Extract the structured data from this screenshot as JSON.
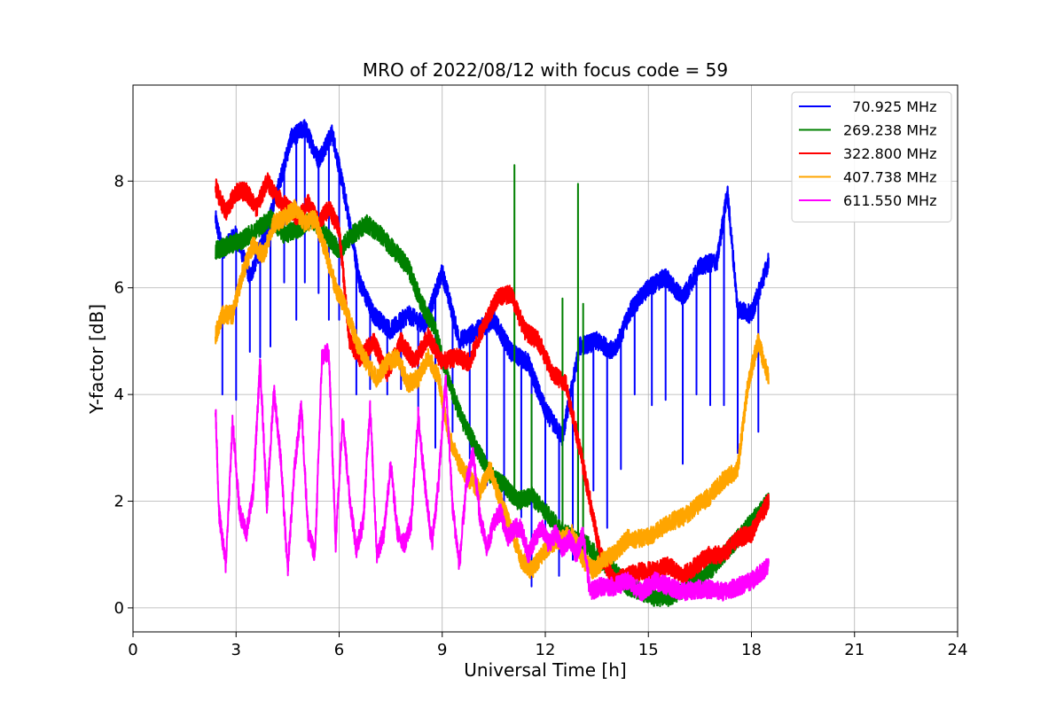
{
  "chart_data": {
    "type": "line",
    "title": "MRO of 2022/08/12 with focus code = 59",
    "xlabel": "Universal Time [h]",
    "ylabel": "Y-factor [dB]",
    "xlim": [
      0,
      24
    ],
    "ylim": [
      -0.45,
      9.8
    ],
    "xticks": [
      0,
      3,
      6,
      9,
      12,
      15,
      18,
      21,
      24
    ],
    "yticks": [
      0,
      2,
      4,
      6,
      8
    ],
    "grid": true,
    "legend_position": "upper right",
    "series": [
      {
        "name": "  70.925 MHz",
        "color": "#0000ff",
        "x": [
          2.4,
          2.6,
          3.0,
          3.4,
          3.8,
          4.2,
          4.6,
          5.0,
          5.4,
          5.8,
          6.2,
          6.6,
          7.0,
          7.5,
          8.0,
          8.5,
          9.0,
          9.5,
          10.0,
          10.5,
          11.0,
          11.5,
          12.0,
          12.5,
          13.0,
          13.5,
          14.0,
          14.5,
          15.0,
          15.5,
          16.0,
          16.5,
          17.0,
          17.3,
          17.6,
          18.0,
          18.5
        ],
        "y": [
          7.3,
          6.7,
          7.0,
          6.2,
          6.9,
          7.8,
          8.8,
          9.0,
          8.4,
          8.9,
          7.6,
          6.1,
          5.5,
          5.2,
          5.5,
          5.3,
          6.3,
          5.0,
          5.2,
          5.4,
          4.8,
          4.6,
          3.7,
          3.2,
          4.9,
          5.0,
          4.8,
          5.6,
          6.0,
          6.2,
          5.8,
          6.4,
          6.5,
          7.8,
          5.6,
          5.5,
          6.5
        ],
        "dips": [
          [
            2.6,
            4.0
          ],
          [
            3.0,
            3.9
          ],
          [
            3.4,
            4.8
          ],
          [
            3.7,
            4.7
          ],
          [
            4.0,
            4.9
          ],
          [
            4.4,
            6.1
          ],
          [
            4.75,
            5.4
          ],
          [
            5.0,
            6.1
          ],
          [
            5.4,
            5.9
          ],
          [
            5.7,
            5.4
          ],
          [
            6.0,
            5.4
          ],
          [
            6.5,
            4.0
          ],
          [
            6.9,
            4.1
          ],
          [
            7.4,
            4.0
          ],
          [
            7.8,
            4.1
          ],
          [
            8.3,
            3.7
          ],
          [
            8.8,
            3.0
          ],
          [
            9.3,
            3.3
          ],
          [
            9.8,
            2.8
          ],
          [
            10.3,
            2.3
          ],
          [
            10.8,
            1.5
          ],
          [
            11.3,
            1.7
          ],
          [
            11.6,
            0.4
          ],
          [
            12.0,
            1.0
          ],
          [
            12.4,
            0.6
          ],
          [
            12.8,
            0.9
          ],
          [
            13.4,
            2.2
          ],
          [
            13.8,
            1.5
          ],
          [
            14.2,
            2.6
          ],
          [
            14.6,
            4.0
          ],
          [
            15.1,
            3.8
          ],
          [
            15.5,
            3.9
          ],
          [
            16.0,
            2.7
          ],
          [
            16.4,
            4.0
          ],
          [
            16.8,
            3.8
          ],
          [
            17.2,
            3.8
          ],
          [
            17.6,
            2.9
          ],
          [
            18.2,
            3.3
          ]
        ]
      },
      {
        "name": "269.238 MHz",
        "color": "#008000",
        "x": [
          2.4,
          2.8,
          3.2,
          3.6,
          4.0,
          4.4,
          4.8,
          5.2,
          5.6,
          6.0,
          6.4,
          6.8,
          7.2,
          7.6,
          8.0,
          8.4,
          8.8,
          9.2,
          9.6,
          10.0,
          10.4,
          10.8,
          11.2,
          11.6,
          12.0,
          12.4,
          12.8,
          13.2,
          13.6,
          14.0,
          14.4,
          14.8,
          15.2,
          15.6,
          16.0,
          16.4,
          16.8,
          17.2,
          17.6,
          18.0,
          18.5
        ],
        "y": [
          6.7,
          6.8,
          6.9,
          7.1,
          7.3,
          7.0,
          7.1,
          7.3,
          7.0,
          6.7,
          7.0,
          7.2,
          7.0,
          6.7,
          6.4,
          5.7,
          5.2,
          4.2,
          3.5,
          3.0,
          2.5,
          2.3,
          2.0,
          2.1,
          1.8,
          1.5,
          1.3,
          1.2,
          0.9,
          0.7,
          0.4,
          0.3,
          0.2,
          0.2,
          0.35,
          0.5,
          0.7,
          1.0,
          1.3,
          1.6,
          2.0
        ],
        "spikes": [
          [
            11.1,
            8.3
          ],
          [
            12.5,
            5.8
          ],
          [
            12.95,
            7.95
          ],
          [
            13.1,
            5.7
          ],
          [
            11.6,
            4.0
          ]
        ]
      },
      {
        "name": "322.800 MHz",
        "color": "#ff0000",
        "x": [
          2.4,
          2.7,
          3.0,
          3.3,
          3.6,
          3.9,
          4.2,
          4.5,
          4.8,
          5.1,
          5.4,
          5.7,
          6.0,
          6.3,
          6.6,
          7.0,
          7.4,
          7.8,
          8.2,
          8.6,
          9.0,
          9.4,
          9.8,
          10.2,
          10.6,
          11.0,
          11.4,
          11.8,
          12.2,
          12.6,
          13.0,
          13.3,
          13.6,
          14.0,
          14.4,
          14.8,
          15.2,
          15.6,
          16.0,
          16.4,
          16.8,
          17.2,
          17.6,
          18.0,
          18.5
        ],
        "y": [
          7.9,
          7.4,
          7.8,
          7.8,
          7.5,
          8.0,
          7.7,
          7.5,
          7.3,
          7.6,
          7.2,
          7.5,
          7.1,
          5.0,
          4.7,
          5.0,
          4.4,
          5.0,
          4.6,
          5.1,
          4.6,
          4.7,
          4.6,
          5.3,
          5.8,
          5.9,
          5.2,
          5.0,
          4.4,
          4.2,
          3.0,
          2.0,
          1.0,
          0.5,
          0.6,
          0.7,
          0.7,
          0.8,
          0.6,
          0.8,
          1.0,
          1.0,
          1.3,
          1.4,
          2.0
        ]
      },
      {
        "name": "407.738 MHz",
        "color": "#ffa500",
        "x": [
          2.4,
          2.6,
          2.9,
          3.2,
          3.5,
          3.8,
          4.1,
          4.4,
          4.7,
          5.0,
          5.3,
          5.6,
          5.9,
          6.2,
          6.5,
          6.8,
          7.1,
          7.4,
          7.7,
          8.0,
          8.3,
          8.6,
          8.9,
          9.2,
          9.5,
          9.8,
          10.1,
          10.4,
          10.7,
          11.0,
          11.3,
          11.6,
          11.9,
          12.2,
          12.5,
          12.8,
          13.1,
          13.4,
          13.7,
          14.0,
          14.4,
          14.8,
          15.2,
          15.6,
          16.0,
          16.4,
          16.8,
          17.2,
          17.6,
          17.9,
          18.2,
          18.5
        ],
        "y": [
          5.1,
          5.5,
          5.5,
          6.3,
          6.8,
          6.6,
          7.2,
          7.3,
          7.5,
          7.2,
          7.3,
          6.7,
          6.0,
          5.6,
          5.0,
          4.6,
          4.3,
          4.6,
          4.7,
          4.2,
          4.3,
          4.7,
          4.3,
          3.2,
          2.7,
          2.4,
          2.2,
          2.6,
          2.0,
          1.5,
          0.9,
          0.7,
          1.0,
          1.2,
          1.3,
          1.4,
          0.9,
          0.7,
          0.9,
          1.0,
          1.3,
          1.3,
          1.4,
          1.6,
          1.7,
          1.9,
          2.1,
          2.4,
          2.6,
          4.2,
          5.0,
          4.3
        ]
      },
      {
        "name": "611.550 MHz",
        "color": "#ff00ff",
        "x": [
          2.4,
          2.5,
          2.7,
          2.9,
          3.1,
          3.3,
          3.5,
          3.7,
          3.9,
          4.1,
          4.3,
          4.5,
          4.7,
          4.9,
          5.1,
          5.3,
          5.5,
          5.7,
          5.9,
          6.1,
          6.3,
          6.5,
          6.7,
          6.9,
          7.1,
          7.3,
          7.5,
          7.7,
          7.9,
          8.1,
          8.3,
          8.5,
          8.7,
          8.9,
          9.1,
          9.3,
          9.5,
          9.7,
          9.9,
          10.1,
          10.3,
          10.5,
          10.7,
          10.9,
          11.1,
          11.3,
          11.5,
          11.7,
          11.9,
          12.1,
          12.3,
          12.5,
          12.7,
          12.9,
          13.1,
          13.3,
          13.6,
          14.0,
          14.4,
          14.8,
          15.2,
          15.6,
          16.0,
          16.4,
          16.8,
          17.2,
          17.6,
          18.0,
          18.5
        ],
        "y": [
          3.8,
          1.8,
          0.8,
          3.5,
          1.8,
          1.4,
          2.2,
          4.6,
          1.9,
          4.1,
          2.8,
          0.7,
          2.6,
          3.8,
          1.4,
          1.0,
          4.7,
          4.8,
          1.2,
          3.6,
          2.1,
          1.1,
          1.6,
          3.8,
          1.0,
          1.4,
          2.7,
          1.4,
          1.2,
          1.6,
          3.6,
          2.3,
          1.2,
          2.4,
          4.3,
          1.9,
          0.8,
          2.3,
          2.9,
          1.7,
          1.1,
          1.6,
          1.8,
          1.3,
          1.5,
          1.5,
          1.0,
          1.3,
          1.5,
          1.2,
          1.4,
          1.1,
          1.3,
          1.0,
          1.4,
          0.3,
          0.4,
          0.4,
          0.5,
          0.3,
          0.5,
          0.4,
          0.3,
          0.35,
          0.35,
          0.3,
          0.4,
          0.5,
          0.8
        ]
      }
    ]
  }
}
